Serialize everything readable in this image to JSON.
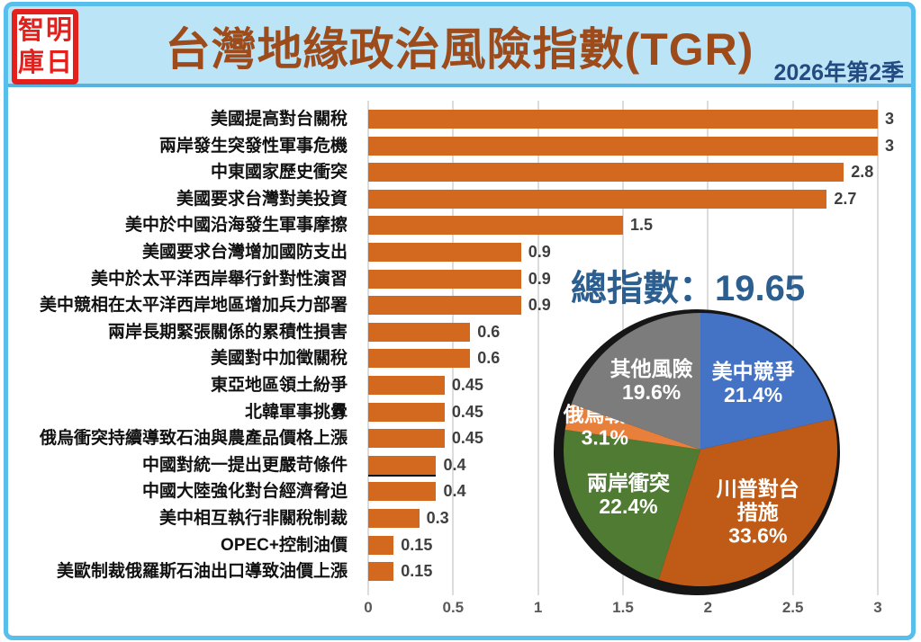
{
  "header": {
    "title": "台灣地緣政治風險指數(TGR)",
    "period": "2026年第2季",
    "logo_name": "明日智庫",
    "logo_chars": [
      "智",
      "明",
      "庫",
      "日"
    ]
  },
  "total_index": {
    "label": "總指數：19.65",
    "value": 19.65
  },
  "colors": {
    "frame_border": "#58BEEC",
    "header_bg": "#BCE4F7",
    "title_text": "#9D4B1B",
    "subtitle_text": "#234B82",
    "logo_red": "#E3201B",
    "bar_orange": "#D2691E",
    "gridline": "#DCDCDC",
    "value_label": "#3F3F3F",
    "total_text": "#2C5E90",
    "pie_shadow": "#161616"
  },
  "chart_data": [
    {
      "type": "bar",
      "orientation": "horizontal",
      "title": "",
      "xlabel": "",
      "ylabel": "",
      "xlim": [
        0,
        3
      ],
      "grid": true,
      "bar_color": "#D2691E",
      "xticks": [
        0,
        0.5,
        1,
        1.5,
        2,
        2.5,
        3
      ],
      "xtick_labels": [
        "0",
        "0.5",
        "1",
        "1.5",
        "2",
        "2.5",
        "3"
      ],
      "categories": [
        "美國提高對台關稅",
        "兩岸發生突發性軍事危機",
        "中東國家歷史衝突",
        "美國要求台灣對美投資",
        "美中於中國沿海發生軍事摩擦",
        "美國要求台灣增加國防支出",
        "美中於太平洋西岸舉行針對性演習",
        "美中競相在太平洋西岸地區增加兵力部署",
        "兩岸長期緊張關係的累積性損害",
        "美國對中加徵關稅",
        "東亞地區領土紛爭",
        "北韓軍事挑釁",
        "俄烏衝突持續導致石油與農產品價格上漲",
        "中國對統一提出更嚴苛條件",
        "中國大陸強化對台經濟脅迫",
        "美中相互執行非關稅制裁",
        "OPEC+控制油價",
        "美歐制裁俄羅斯石油出口導致油價上漲"
      ],
      "values": [
        3,
        3,
        2.8,
        2.7,
        1.5,
        0.9,
        0.9,
        0.9,
        0.6,
        0.6,
        0.45,
        0.45,
        0.45,
        0.4,
        0.4,
        0.3,
        0.15,
        0.15
      ],
      "value_labels": [
        "3",
        "3",
        "2.8",
        "2.7",
        "1.5",
        "0.9",
        "0.9",
        "0.9",
        "0.6",
        "0.6",
        "0.45",
        "0.45",
        "0.45",
        "0.4",
        "0.4",
        "0.3",
        "0.15",
        "0.15"
      ],
      "special_bottom_border_index": 13
    },
    {
      "type": "pie",
      "legend_position": "none",
      "start_at": "top-clockwise",
      "slices": [
        {
          "label": "美中競爭",
          "pct": 21.4,
          "color": "#4472C4",
          "label_lines": [
            "美中競爭",
            "21.4%"
          ]
        },
        {
          "label": "川普對台措施",
          "pct": 33.6,
          "color": "#BF5B17",
          "label_lines": [
            "川普對台",
            "措施",
            "33.6%"
          ]
        },
        {
          "label": "兩岸衝突",
          "pct": 22.4,
          "color": "#4F7B33",
          "label_lines": [
            "兩岸衝突",
            "22.4%"
          ]
        },
        {
          "label": "俄烏戰爭",
          "pct": 3.1,
          "color": "#E8803C",
          "label_lines": [
            "俄烏戰爭",
            "3.1%"
          ]
        },
        {
          "label": "其他風險",
          "pct": 19.6,
          "color": "#7C7C7C",
          "label_lines": [
            "其他風險",
            "19.6%"
          ]
        }
      ]
    }
  ]
}
